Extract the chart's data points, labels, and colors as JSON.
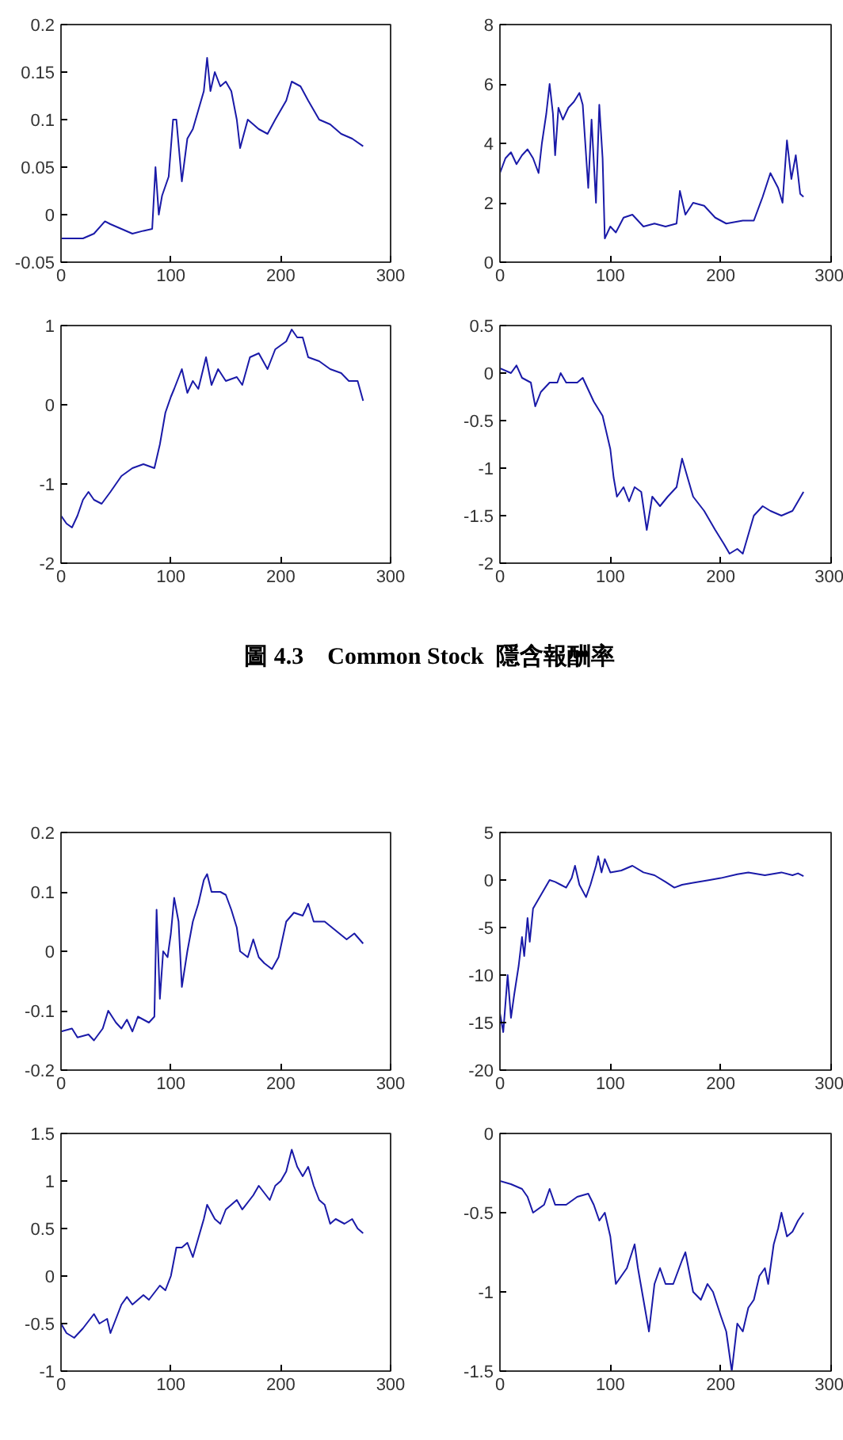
{
  "chart_data": [
    {
      "type": "line",
      "color": "#1a1aa8",
      "xlim": [
        0,
        300
      ],
      "xticks": [
        0,
        100,
        200,
        300
      ],
      "ylim": [
        -0.05,
        0.2
      ],
      "yticks": [
        -0.05,
        0,
        0.05,
        0.1,
        0.15,
        0.2
      ],
      "x": [
        0,
        10,
        20,
        30,
        40,
        45,
        55,
        65,
        75,
        83,
        86,
        89,
        92,
        98,
        102,
        105,
        110,
        115,
        120,
        125,
        130,
        133,
        136,
        140,
        145,
        150,
        155,
        160,
        163,
        170,
        180,
        188,
        195,
        205,
        210,
        218,
        225,
        235,
        245,
        255,
        265,
        275
      ],
      "values": [
        -0.025,
        -0.025,
        -0.025,
        -0.02,
        -0.007,
        -0.01,
        -0.015,
        -0.02,
        -0.017,
        -0.015,
        0.05,
        0.0,
        0.02,
        0.04,
        0.1,
        0.1,
        0.035,
        0.08,
        0.09,
        0.11,
        0.13,
        0.165,
        0.13,
        0.15,
        0.135,
        0.14,
        0.13,
        0.1,
        0.07,
        0.1,
        0.09,
        0.085,
        0.1,
        0.12,
        0.14,
        0.135,
        0.12,
        0.1,
        0.095,
        0.085,
        0.08,
        0.072
      ]
    },
    {
      "type": "line",
      "color": "#1a1aa8",
      "xlim": [
        0,
        300
      ],
      "xticks": [
        0,
        100,
        200,
        300
      ],
      "ylim": [
        0,
        8
      ],
      "yticks": [
        0,
        2,
        4,
        6,
        8
      ],
      "x": [
        0,
        5,
        10,
        15,
        20,
        25,
        30,
        35,
        38,
        42,
        45,
        48,
        50,
        53,
        57,
        62,
        67,
        72,
        75,
        80,
        83,
        87,
        90,
        93,
        95,
        100,
        105,
        112,
        120,
        130,
        140,
        150,
        160,
        163,
        168,
        175,
        185,
        195,
        205,
        220,
        230,
        238,
        245,
        252,
        256,
        260,
        264,
        268,
        272,
        275
      ],
      "values": [
        3.0,
        3.5,
        3.7,
        3.3,
        3.6,
        3.8,
        3.5,
        3.0,
        4.0,
        5.0,
        6.0,
        5.0,
        3.6,
        5.2,
        4.8,
        5.2,
        5.4,
        5.7,
        5.3,
        2.5,
        4.8,
        2.0,
        5.3,
        3.5,
        0.8,
        1.2,
        1.0,
        1.5,
        1.6,
        1.2,
        1.3,
        1.2,
        1.3,
        2.4,
        1.6,
        2.0,
        1.9,
        1.5,
        1.3,
        1.4,
        1.4,
        2.2,
        3.0,
        2.5,
        2.0,
        4.1,
        2.8,
        3.6,
        2.3,
        2.2
      ]
    },
    {
      "type": "line",
      "color": "#1a1aa8",
      "xlim": [
        0,
        300
      ],
      "xticks": [
        0,
        100,
        200,
        300
      ],
      "ylim": [
        -2,
        1
      ],
      "yticks": [
        -2,
        -1,
        0,
        1
      ],
      "x": [
        0,
        5,
        10,
        15,
        20,
        25,
        30,
        37,
        45,
        55,
        65,
        75,
        85,
        90,
        95,
        100,
        103,
        110,
        115,
        120,
        125,
        132,
        137,
        143,
        150,
        160,
        165,
        172,
        180,
        188,
        195,
        205,
        210,
        215,
        220,
        225,
        235,
        245,
        255,
        262,
        270,
        275
      ],
      "values": [
        -1.4,
        -1.5,
        -1.55,
        -1.4,
        -1.2,
        -1.1,
        -1.2,
        -1.25,
        -1.1,
        -0.9,
        -0.8,
        -0.75,
        -0.8,
        -0.5,
        -0.1,
        0.1,
        0.2,
        0.45,
        0.15,
        0.3,
        0.2,
        0.6,
        0.25,
        0.45,
        0.3,
        0.35,
        0.25,
        0.6,
        0.65,
        0.45,
        0.7,
        0.8,
        0.95,
        0.85,
        0.85,
        0.6,
        0.55,
        0.45,
        0.4,
        0.3,
        0.3,
        0.05
      ]
    },
    {
      "type": "line",
      "color": "#1a1aa8",
      "xlim": [
        0,
        300
      ],
      "xticks": [
        0,
        100,
        200,
        300
      ],
      "ylim": [
        -2,
        0.5
      ],
      "yticks": [
        -2,
        -1.5,
        -1,
        -0.5,
        0,
        0.5
      ],
      "x": [
        0,
        10,
        15,
        20,
        28,
        32,
        37,
        45,
        52,
        55,
        60,
        70,
        75,
        85,
        93,
        100,
        103,
        106,
        112,
        117,
        122,
        128,
        133,
        138,
        145,
        152,
        160,
        165,
        170,
        175,
        185,
        195,
        203,
        208,
        215,
        220,
        225,
        230,
        238,
        245,
        255,
        265,
        270,
        275
      ],
      "values": [
        0.05,
        0.0,
        0.08,
        -0.05,
        -0.1,
        -0.35,
        -0.2,
        -0.1,
        -0.1,
        0.0,
        -0.1,
        -0.1,
        -0.05,
        -0.3,
        -0.45,
        -0.8,
        -1.1,
        -1.3,
        -1.2,
        -1.35,
        -1.2,
        -1.25,
        -1.65,
        -1.3,
        -1.4,
        -1.3,
        -1.2,
        -0.9,
        -1.1,
        -1.3,
        -1.45,
        -1.65,
        -1.8,
        -1.9,
        -1.85,
        -1.9,
        -1.7,
        -1.5,
        -1.4,
        -1.45,
        -1.5,
        -1.45,
        -1.35,
        -1.25
      ],
      "annotations": [
        "圖 4.3    Common Stock  隱含報酬率"
      ]
    },
    {
      "type": "line",
      "color": "#1a1aa8",
      "xlim": [
        0,
        300
      ],
      "xticks": [
        0,
        100,
        200,
        300
      ],
      "ylim": [
        -0.2,
        0.2
      ],
      "yticks": [
        -0.2,
        -0.1,
        0,
        0.1,
        0.2
      ],
      "x": [
        0,
        10,
        15,
        25,
        30,
        38,
        43,
        50,
        55,
        60,
        65,
        70,
        80,
        85,
        87,
        90,
        93,
        97,
        100,
        103,
        107,
        110,
        115,
        120,
        125,
        130,
        133,
        137,
        145,
        150,
        155,
        160,
        163,
        170,
        175,
        180,
        185,
        192,
        198,
        205,
        212,
        220,
        225,
        230,
        240,
        250,
        260,
        267,
        275
      ],
      "values": [
        -0.135,
        -0.13,
        -0.145,
        -0.14,
        -0.15,
        -0.13,
        -0.1,
        -0.12,
        -0.13,
        -0.115,
        -0.135,
        -0.11,
        -0.12,
        -0.11,
        0.07,
        -0.08,
        0.0,
        -0.01,
        0.03,
        0.09,
        0.05,
        -0.06,
        0.0,
        0.05,
        0.08,
        0.12,
        0.13,
        0.1,
        0.1,
        0.095,
        0.07,
        0.04,
        0.0,
        -0.01,
        0.02,
        -0.01,
        -0.02,
        -0.03,
        -0.01,
        0.05,
        0.065,
        0.06,
        0.08,
        0.05,
        0.05,
        0.035,
        0.02,
        0.03,
        0.013
      ]
    },
    {
      "type": "line",
      "color": "#1a1aa8",
      "xlim": [
        0,
        300
      ],
      "xticks": [
        0,
        100,
        200,
        300
      ],
      "ylim": [
        -20,
        5
      ],
      "yticks": [
        -20,
        -15,
        -10,
        -5,
        0,
        5
      ],
      "x": [
        0,
        3,
        5,
        7,
        10,
        13,
        17,
        20,
        22,
        25,
        27,
        30,
        35,
        40,
        45,
        50,
        55,
        60,
        65,
        68,
        72,
        78,
        82,
        87,
        89,
        92,
        95,
        100,
        110,
        120,
        130,
        140,
        150,
        158,
        165,
        175,
        190,
        200,
        215,
        225,
        240,
        255,
        265,
        270,
        275
      ],
      "values": [
        -14,
        -16,
        -13,
        -10,
        -14.5,
        -12,
        -9,
        -6,
        -8,
        -4,
        -6.5,
        -3,
        -2,
        -1,
        0,
        -0.2,
        -0.5,
        -0.8,
        0.2,
        1.5,
        -0.5,
        -1.8,
        -0.5,
        1.5,
        2.5,
        0.8,
        2.2,
        0.8,
        1.0,
        1.5,
        0.8,
        0.5,
        -0.2,
        -0.8,
        -0.5,
        -0.3,
        0,
        0.2,
        0.6,
        0.8,
        0.5,
        0.8,
        0.5,
        0.7,
        0.4
      ]
    },
    {
      "type": "line",
      "color": "#1a1aa8",
      "xlim": [
        0,
        300
      ],
      "xticks": [
        0,
        100,
        200,
        300
      ],
      "ylim": [
        -1,
        1.5
      ],
      "yticks": [
        -1,
        -0.5,
        0,
        0.5,
        1,
        1.5
      ],
      "x": [
        0,
        5,
        12,
        20,
        30,
        35,
        42,
        45,
        50,
        55,
        60,
        65,
        75,
        80,
        90,
        95,
        100,
        105,
        110,
        115,
        120,
        125,
        130,
        133,
        140,
        145,
        150,
        160,
        165,
        175,
        180,
        190,
        195,
        200,
        205,
        210,
        215,
        220,
        225,
        230,
        235,
        240,
        245,
        250,
        258,
        265,
        270,
        275
      ],
      "values": [
        -0.5,
        -0.6,
        -0.65,
        -0.55,
        -0.4,
        -0.5,
        -0.45,
        -0.6,
        -0.45,
        -0.3,
        -0.22,
        -0.3,
        -0.2,
        -0.25,
        -0.1,
        -0.15,
        0.0,
        0.3,
        0.3,
        0.35,
        0.2,
        0.4,
        0.6,
        0.75,
        0.6,
        0.55,
        0.7,
        0.8,
        0.7,
        0.85,
        0.95,
        0.8,
        0.95,
        1.0,
        1.1,
        1.33,
        1.15,
        1.05,
        1.15,
        0.95,
        0.8,
        0.75,
        0.55,
        0.6,
        0.55,
        0.6,
        0.5,
        0.45
      ]
    },
    {
      "type": "line",
      "color": "#1a1aa8",
      "xlim": [
        0,
        300
      ],
      "xticks": [
        0,
        100,
        200,
        300
      ],
      "ylim": [
        -1.5,
        0
      ],
      "yticks": [
        -1.5,
        -1,
        -0.5,
        0
      ],
      "x": [
        0,
        10,
        20,
        25,
        30,
        40,
        45,
        50,
        60,
        70,
        80,
        85,
        90,
        95,
        100,
        105,
        110,
        115,
        122,
        125,
        130,
        135,
        140,
        145,
        150,
        157,
        165,
        168,
        175,
        182,
        188,
        193,
        200,
        205,
        210,
        215,
        220,
        225,
        230,
        235,
        240,
        243,
        248,
        252,
        255,
        260,
        265,
        270,
        275
      ],
      "values": [
        -0.3,
        -0.32,
        -0.35,
        -0.4,
        -0.5,
        -0.45,
        -0.35,
        -0.45,
        -0.45,
        -0.4,
        -0.38,
        -0.45,
        -0.55,
        -0.5,
        -0.65,
        -0.95,
        -0.9,
        -0.85,
        -0.7,
        -0.85,
        -1.05,
        -1.25,
        -0.95,
        -0.85,
        -0.95,
        -0.95,
        -0.8,
        -0.75,
        -1.0,
        -1.05,
        -0.95,
        -1.0,
        -1.15,
        -1.25,
        -1.5,
        -1.2,
        -1.25,
        -1.1,
        -1.05,
        -0.9,
        -0.85,
        -0.95,
        -0.7,
        -0.6,
        -0.5,
        -0.65,
        -0.62,
        -0.55,
        -0.5
      ]
    }
  ]
}
